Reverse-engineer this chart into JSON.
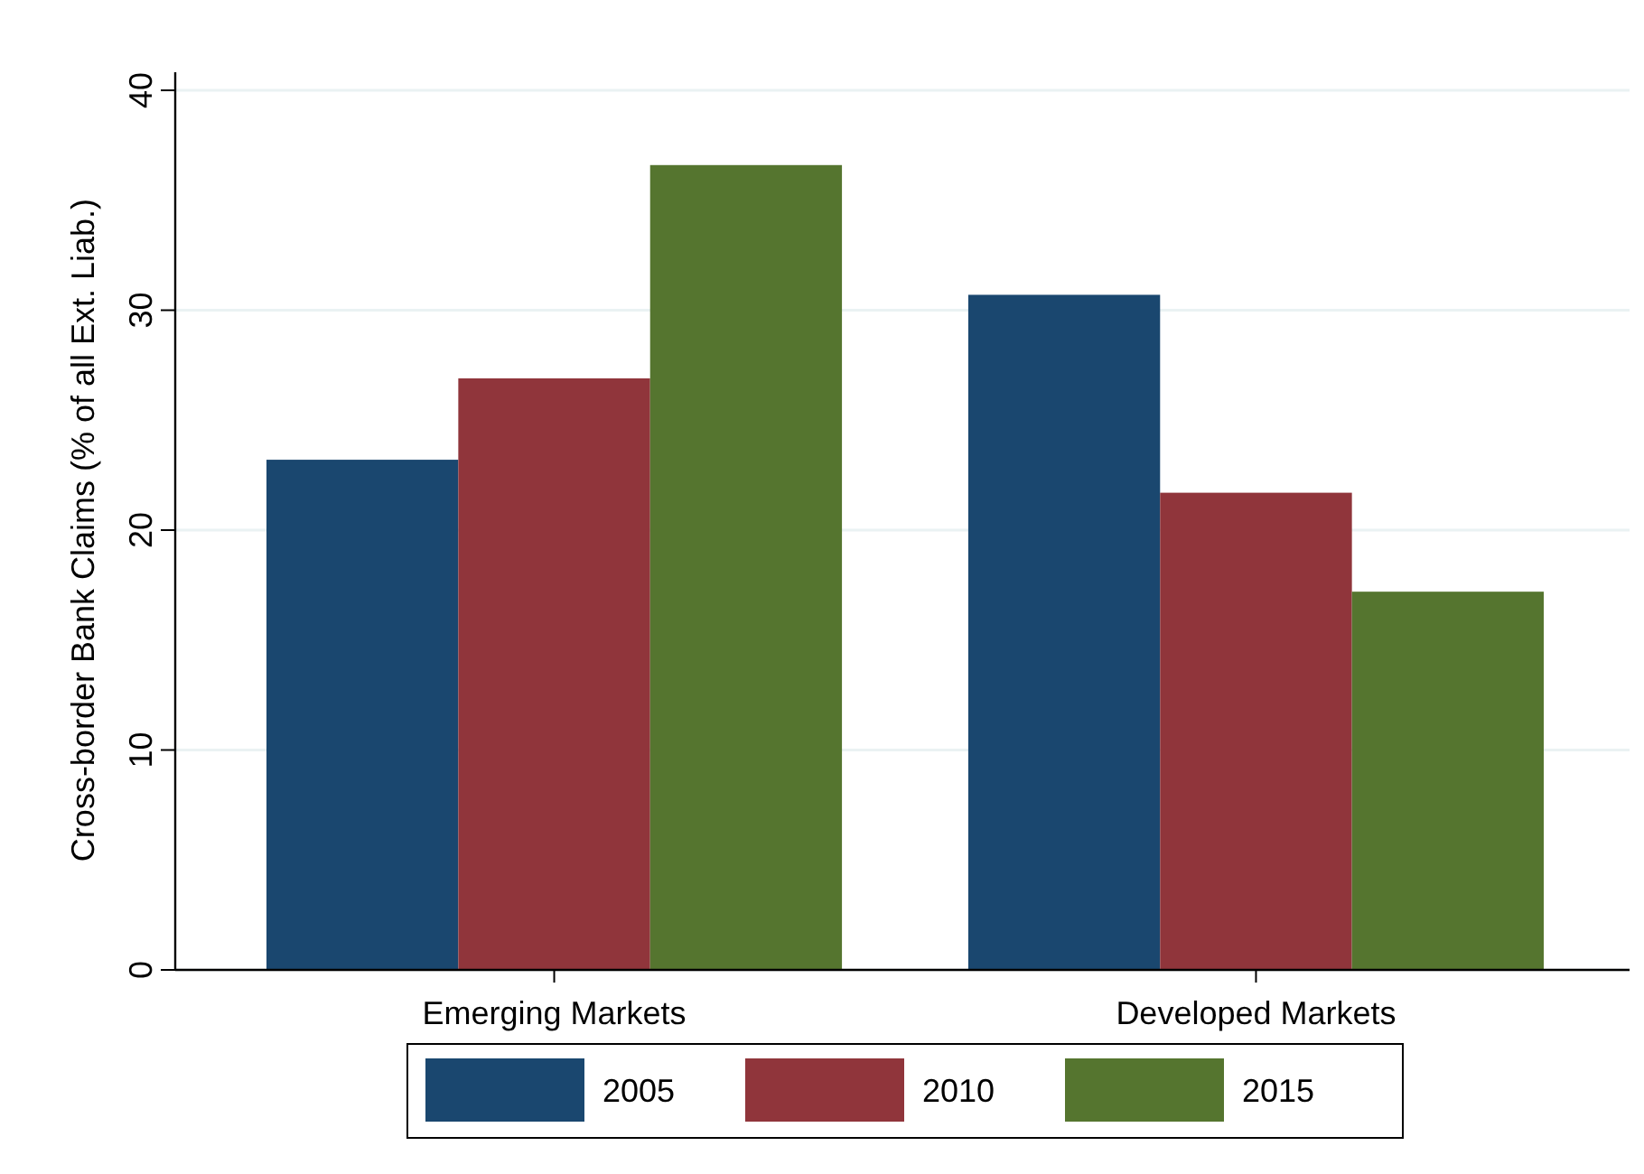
{
  "chart_data": {
    "type": "bar",
    "ylabel": "Cross-border Bank Claims (% of all Ext. Liab.)",
    "categories": [
      "Emerging Markets",
      "Developed Markets"
    ],
    "series": [
      {
        "name": "2005",
        "color": "#1a476f",
        "values": [
          23.2,
          30.7
        ]
      },
      {
        "name": "2010",
        "color": "#90353b",
        "values": [
          26.9,
          21.7
        ]
      },
      {
        "name": "2015",
        "color": "#55752f",
        "values": [
          36.6,
          17.2
        ]
      }
    ],
    "ylim": [
      0,
      40
    ],
    "yticks": [
      0,
      10,
      20,
      30,
      40
    ],
    "grid": "y",
    "legend": "bottom"
  }
}
